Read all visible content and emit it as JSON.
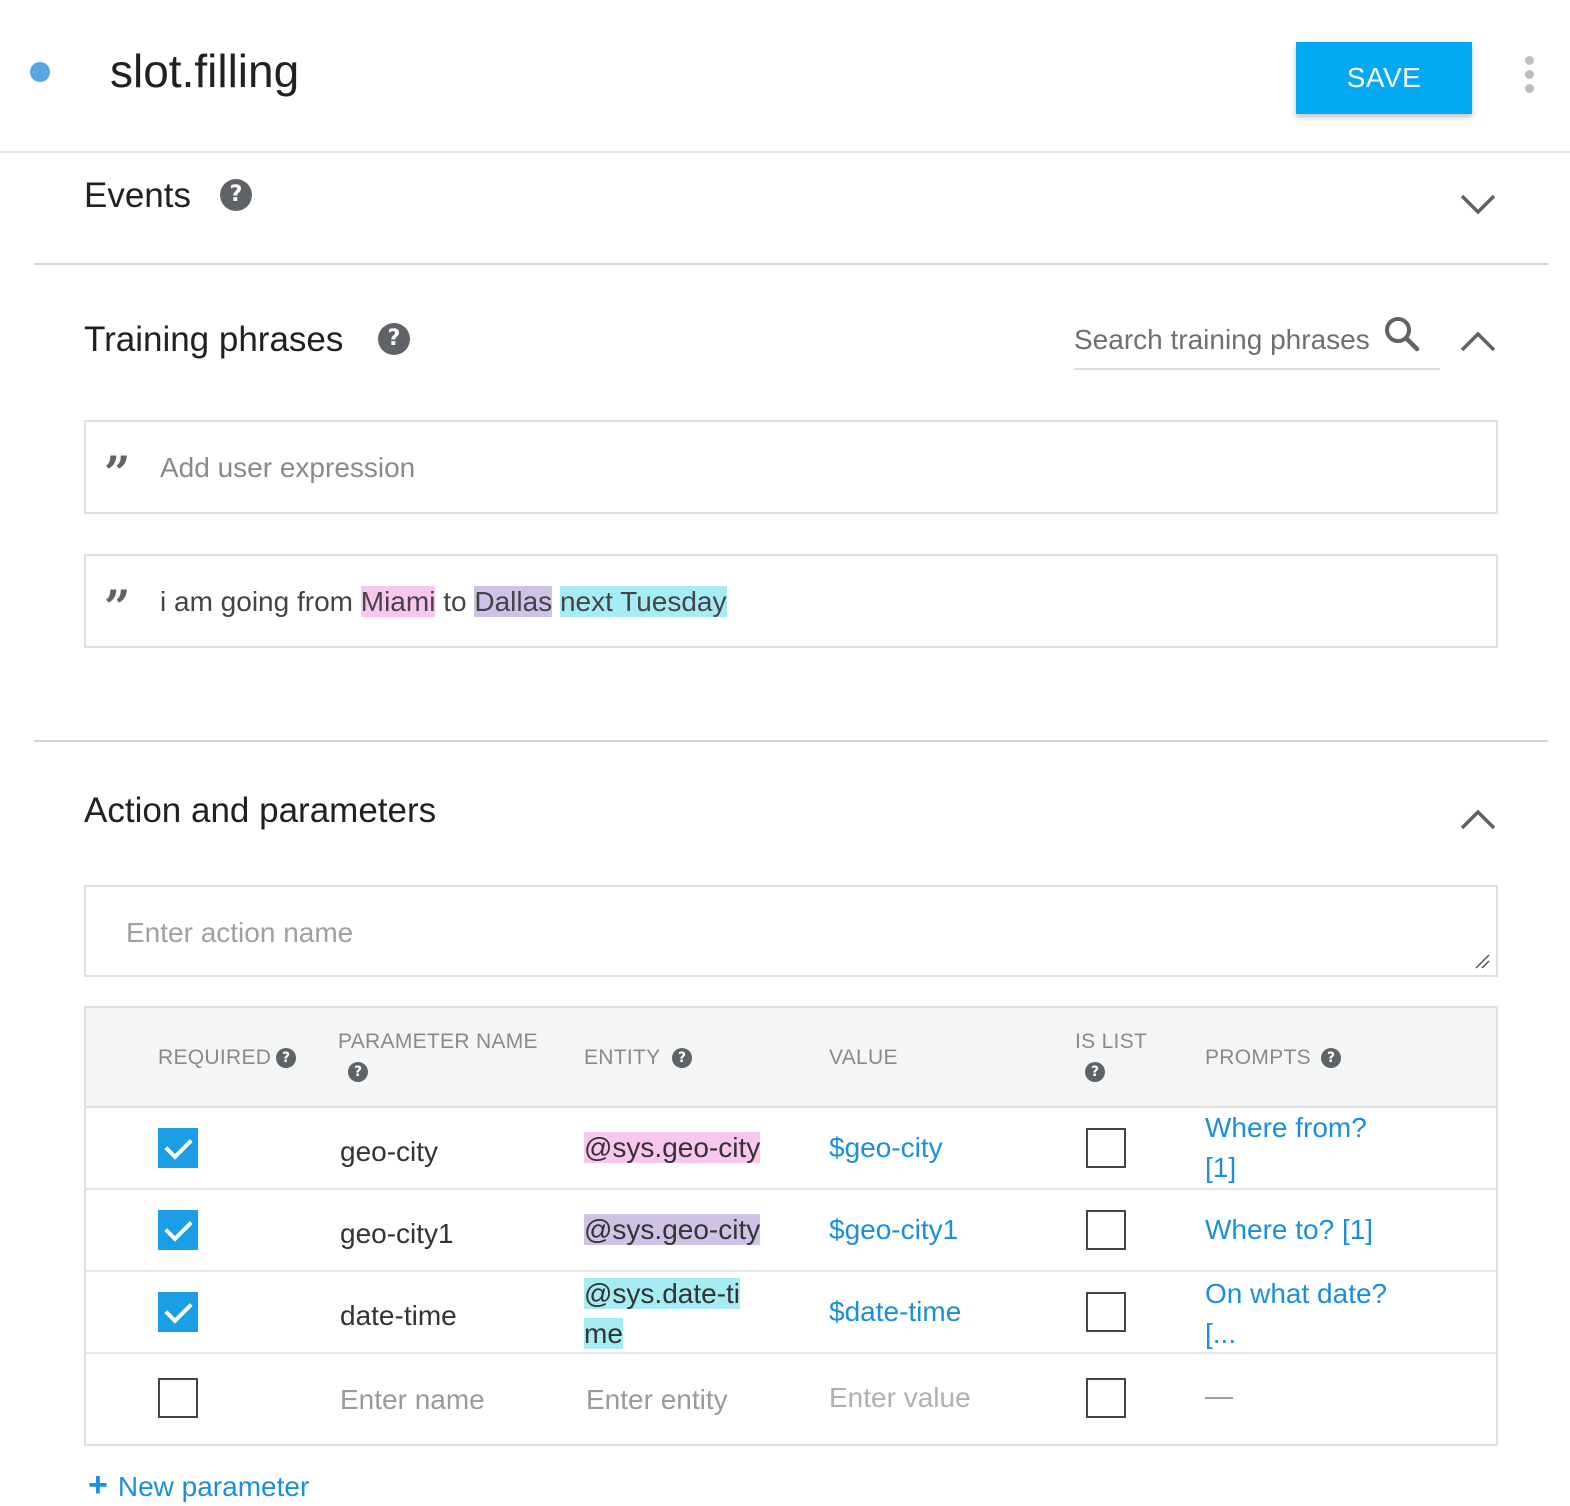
{
  "header": {
    "title": "slot.filling",
    "save_label": "SAVE"
  },
  "events": {
    "title": "Events"
  },
  "training": {
    "title": "Training phrases",
    "search_placeholder": "Search training phrases",
    "add_placeholder": "Add user expression",
    "phrases": [
      {
        "parts": [
          {
            "text": "i am going from ",
            "highlight": null
          },
          {
            "text": "Miami",
            "highlight": "pink"
          },
          {
            "text": " to ",
            "highlight": null
          },
          {
            "text": "Dallas",
            "highlight": "purple"
          },
          {
            "text": " ",
            "highlight": null
          },
          {
            "text": "next Tuesday",
            "highlight": "cyan"
          }
        ]
      }
    ]
  },
  "action": {
    "title": "Action and parameters",
    "name_placeholder": "Enter action name"
  },
  "params": {
    "headers": {
      "required": "REQUIRED",
      "parameter_name": "PARAMETER NAME",
      "entity": "ENTITY",
      "value": "VALUE",
      "is_list": "IS LIST",
      "prompts": "PROMPTS"
    },
    "rows": [
      {
        "required": true,
        "name": "geo-city",
        "entity": "@sys.geo-city",
        "entity_color": "#f9c6f0",
        "value": "$geo-city",
        "is_list": false,
        "prompts": "Where from? [1]"
      },
      {
        "required": true,
        "name": "geo-city1",
        "entity": "@sys.geo-city",
        "entity_color": "#cfc2e6",
        "value": "$geo-city1",
        "is_list": false,
        "prompts": "Where to? [1]"
      },
      {
        "required": true,
        "name": "date-time",
        "entity": "@sys.date-time",
        "entity_color": "#a6ecf5",
        "value": "$date-time",
        "is_list": false,
        "prompts": "On what date? [..."
      }
    ],
    "empty_row": {
      "name_placeholder": "Enter name",
      "entity_placeholder": "Enter entity",
      "value_placeholder": "Enter value",
      "prompts_placeholder": "—"
    },
    "new_parameter_label": "New parameter"
  },
  "colors": {
    "accent": "#04a9f4",
    "link": "#1a8fdc",
    "checkbox": "#1a9ee6"
  }
}
